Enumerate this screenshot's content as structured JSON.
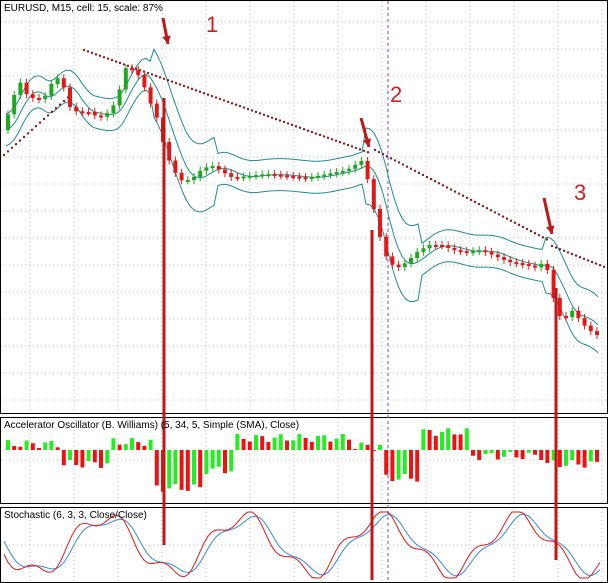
{
  "colors": {
    "bull": "#1fa81f",
    "bear": "#e01818",
    "band": "#1f8f8f",
    "sar": "#8b1a1a",
    "ac_up": "#22ee22",
    "ac_down": "#ee1111",
    "stoch_main": "#e01818",
    "stoch_signal": "#3b86d6",
    "grid": "#c9c9c9",
    "marker": "#c01818",
    "vline": "#8040c0"
  },
  "price_pane": {
    "title": "EURUSD, M15, cell: 15, scale: 87%"
  },
  "ac_pane": {
    "title": "Accelerator Oscillator (B. Williams) (5, 34, 5, Simple (SMA), Close)"
  },
  "stoch_pane": {
    "title": "Stochastic (6, 3, 3, Close/Close)"
  },
  "annotations": [
    "1",
    "2",
    "3"
  ]
}
